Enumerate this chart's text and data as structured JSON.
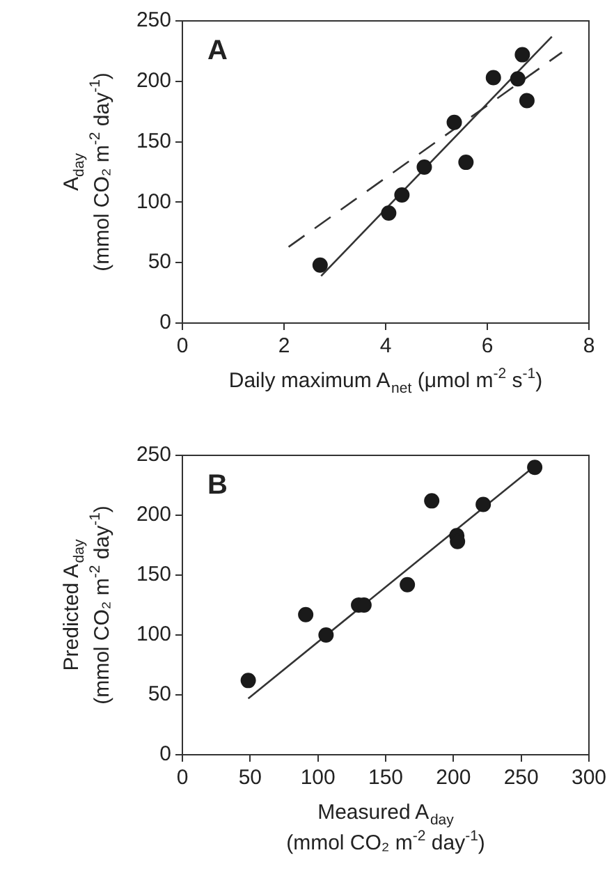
{
  "chart_data": [
    {
      "type": "scatter",
      "title": "A",
      "xlabel": "Daily maximum A$_{net}$ (μmol m$^{-2}$ s$^{-1}$)",
      "ylabel": "A$_{day}$\n(mmol CO₂ m$^{-2}$ day$^{-1}$)",
      "xlim": [
        0,
        8
      ],
      "xticks": [
        0,
        2,
        4,
        6,
        8
      ],
      "ylim": [
        0,
        250
      ],
      "yticks": [
        0,
        50,
        100,
        150,
        200,
        250
      ],
      "marker": "circle",
      "series": [
        {
          "color": "#1a1a1a",
          "x": [
            2.71,
            4.06,
            4.32,
            4.76,
            5.35,
            5.58,
            6.12,
            6.6,
            6.69,
            6.78
          ],
          "values": [
            48,
            91,
            106,
            129,
            166,
            133,
            203,
            202,
            222,
            184
          ]
        },
        {
          "type": "line",
          "color": "#333333",
          "x": [
            2.73,
            7.27
          ],
          "values": [
            39,
            237
          ],
          "marker": "none",
          "line_style": "solid"
        },
        {
          "type": "line",
          "color": "#333333",
          "x": [
            2.09,
            7.47
          ],
          "values": [
            63,
            224
          ],
          "marker": "none",
          "line_style": "dashed"
        }
      ]
    },
    {
      "type": "scatter",
      "title": "B",
      "xlabel": "Measured A$_{day}$\n(mmol CO₂ m$^{-2}$ day$^{-1}$)",
      "ylabel": "Predicted A$_{day}$\n(mmol CO₂ m$^{-2}$ day$^{-1}$)",
      "xlim": [
        0,
        300
      ],
      "xticks": [
        0,
        50,
        100,
        150,
        200,
        250,
        300
      ],
      "ylim": [
        0,
        250
      ],
      "yticks": [
        0,
        50,
        100,
        150,
        200,
        250
      ],
      "marker": "circle",
      "series": [
        {
          "color": "#1a1a1a",
          "x": [
            48.6,
            91,
            106,
            130,
            134,
            166,
            184,
            202.5,
            203,
            222,
            260
          ],
          "values": [
            62,
            117,
            100,
            125,
            125,
            142,
            212,
            183,
            178,
            209,
            240
          ]
        },
        {
          "type": "line",
          "color": "#333333",
          "x": [
            48.6,
            256.6
          ],
          "values": [
            47,
            238
          ],
          "marker": "none",
          "line_style": "solid"
        }
      ]
    }
  ]
}
